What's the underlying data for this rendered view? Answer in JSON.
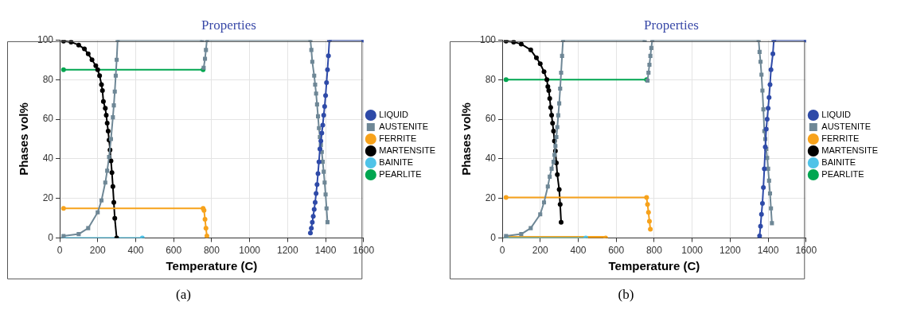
{
  "chart_data": [
    {
      "type": "line",
      "title": "Properties",
      "xlabel": "Temperature (C)",
      "ylabel": "Phases vol%",
      "xlim": [
        0,
        1600
      ],
      "xticks": [
        0,
        200,
        400,
        600,
        800,
        1000,
        1200,
        1400,
        1600
      ],
      "ylim": [
        0,
        100
      ],
      "yticks": [
        0,
        20,
        40,
        60,
        80,
        100
      ],
      "grid": true,
      "legend": "right",
      "line_style": "solid",
      "annotations": [
        "(a)"
      ],
      "series": [
        {
          "name": "LIQUID",
          "color": "#2e4aa8",
          "marker": "circle",
          "x": [
            1320,
            1325,
            1330,
            1335,
            1340,
            1345,
            1350,
            1355,
            1360,
            1365,
            1370,
            1375,
            1380,
            1385,
            1390,
            1395,
            1400,
            1405,
            1410,
            1415,
            1420,
            1600
          ],
          "values": [
            2.5,
            5,
            8,
            11,
            14.5,
            18,
            22.5,
            27,
            32.5,
            38.5,
            45,
            49,
            53,
            57,
            62,
            66.5,
            72,
            78.5,
            85,
            92,
            100,
            100
          ]
        },
        {
          "name": "AUSTENITE",
          "color": "#6e8796",
          "marker": "square",
          "x": [
            20,
            100,
            150,
            200,
            220,
            240,
            250,
            260,
            270,
            280,
            285,
            290,
            295,
            300,
            305,
            750,
            755,
            758,
            765,
            770,
            775,
            1320,
            1325,
            1330,
            1340,
            1345,
            1350,
            1355,
            1360,
            1365,
            1370,
            1375,
            1380,
            1385,
            1390,
            1395,
            1400,
            1405,
            1410
          ],
          "values": [
            1,
            2,
            5,
            13,
            19,
            28,
            34,
            41,
            50,
            61,
            67,
            74,
            82,
            90,
            100,
            100,
            null,
            86,
            90.5,
            95,
            100,
            100,
            95,
            89,
            82,
            77.5,
            73,
            67.5,
            61.5,
            55.5,
            51,
            47,
            43.5,
            38.5,
            33.5,
            28,
            22,
            15,
            8
          ]
        },
        {
          "name": "FERRITE",
          "color": "#f7a21b",
          "marker": "circle",
          "x": [
            20,
            755,
            760,
            765,
            770,
            775
          ],
          "values": [
            15,
            15,
            14,
            9.5,
            5,
            1
          ]
        },
        {
          "name": "MARTENSITE",
          "color": "#000000",
          "marker": "circle",
          "x": [
            20,
            60,
            100,
            130,
            150,
            170,
            190,
            200,
            210,
            220,
            225,
            230,
            240,
            245,
            250,
            255,
            260,
            265,
            270,
            275,
            280,
            285,
            290,
            300
          ],
          "values": [
            99.5,
            99,
            97.5,
            95.5,
            93,
            90,
            87,
            85,
            82,
            77.5,
            74.5,
            69,
            65.5,
            62,
            58,
            54,
            49.5,
            44.5,
            39,
            33,
            26,
            18,
            10,
            0
          ]
        },
        {
          "name": "BAINITE",
          "color": "#4fc3e8",
          "marker": "circle",
          "x": [
            20,
            435
          ],
          "values": [
            0,
            0
          ]
        },
        {
          "name": "PEARLITE",
          "color": "#00a650",
          "marker": "circle",
          "x": [
            20,
            755
          ],
          "values": [
            85,
            85
          ]
        }
      ]
    },
    {
      "type": "line",
      "title": "Properties",
      "xlabel": "Temperature (C)",
      "ylabel": "Phases vol%",
      "xlim": [
        0,
        1600
      ],
      "xticks": [
        0,
        200,
        400,
        600,
        800,
        1000,
        1200,
        1400,
        1600
      ],
      "ylim": [
        0,
        100
      ],
      "yticks": [
        0,
        20,
        40,
        60,
        80,
        100
      ],
      "grid": true,
      "legend": "right",
      "line_style": "solid",
      "annotations": [
        "(b)"
      ],
      "series": [
        {
          "name": "LIQUID",
          "color": "#2e4aa8",
          "marker": "circle",
          "x": [
            1355,
            1360,
            1365,
            1370,
            1375,
            1380,
            1385,
            1390,
            1395,
            1400,
            1405,
            1410,
            1415,
            1425,
            1430,
            1600
          ],
          "values": [
            1,
            6,
            12,
            17.5,
            25.5,
            35,
            46,
            55,
            60,
            65.5,
            71,
            77.5,
            85,
            93,
            100,
            100
          ]
        },
        {
          "name": "AUSTENITE",
          "color": "#6e8796",
          "marker": "square",
          "x": [
            20,
            100,
            150,
            200,
            220,
            240,
            250,
            260,
            270,
            275,
            280,
            285,
            290,
            295,
            300,
            305,
            310,
            315,
            320,
            750,
            755,
            765,
            770,
            775,
            780,
            785,
            790,
            1350,
            1355,
            1360,
            1365,
            1370,
            1375,
            1380,
            1385,
            1390,
            1395,
            1400,
            1405,
            1410,
            1415,
            1420
          ],
          "values": [
            1,
            2,
            5,
            12,
            18,
            26,
            31,
            35,
            38.5,
            42,
            46.5,
            51,
            56,
            62,
            68,
            75.5,
            83.5,
            92,
            100,
            100,
            null,
            79.5,
            83.5,
            87.5,
            92,
            96,
            100,
            100,
            94,
            89,
            82.5,
            74.5,
            65,
            54,
            50,
            45,
            40.5,
            35,
            29,
            22.5,
            15,
            7.5
          ]
        },
        {
          "name": "FERRITE",
          "color": "#f7a21b",
          "marker": "circle",
          "x": [
            20,
            760,
            765,
            770,
            775,
            780
          ],
          "values": [
            20.5,
            20.5,
            17,
            13,
            8.5,
            4.5
          ]
        },
        {
          "color": "#f7a21b",
          "marker": "circle",
          "x": [
            20,
            545
          ],
          "values": [
            0,
            0
          ]
        },
        {
          "name": "MARTENSITE",
          "color": "#000000",
          "marker": "circle",
          "x": [
            20,
            60,
            100,
            150,
            180,
            200,
            220,
            235,
            240,
            245,
            250,
            255,
            260,
            265,
            270,
            275,
            280,
            285,
            290,
            300,
            305,
            310
          ],
          "values": [
            99.5,
            99,
            98,
            95,
            91,
            88,
            84,
            80,
            76.5,
            74.5,
            70.5,
            66,
            62,
            58,
            54,
            49,
            44,
            38,
            32,
            24.5,
            17,
            8
          ]
        },
        {
          "name": "BAINITE",
          "color": "#4fc3e8",
          "marker": "circle",
          "x": [
            20,
            440
          ],
          "values": [
            0,
            0
          ]
        },
        {
          "name": "PEARLITE",
          "color": "#00a650",
          "marker": "circle",
          "x": [
            20,
            760
          ],
          "values": [
            80,
            80
          ]
        }
      ]
    }
  ]
}
